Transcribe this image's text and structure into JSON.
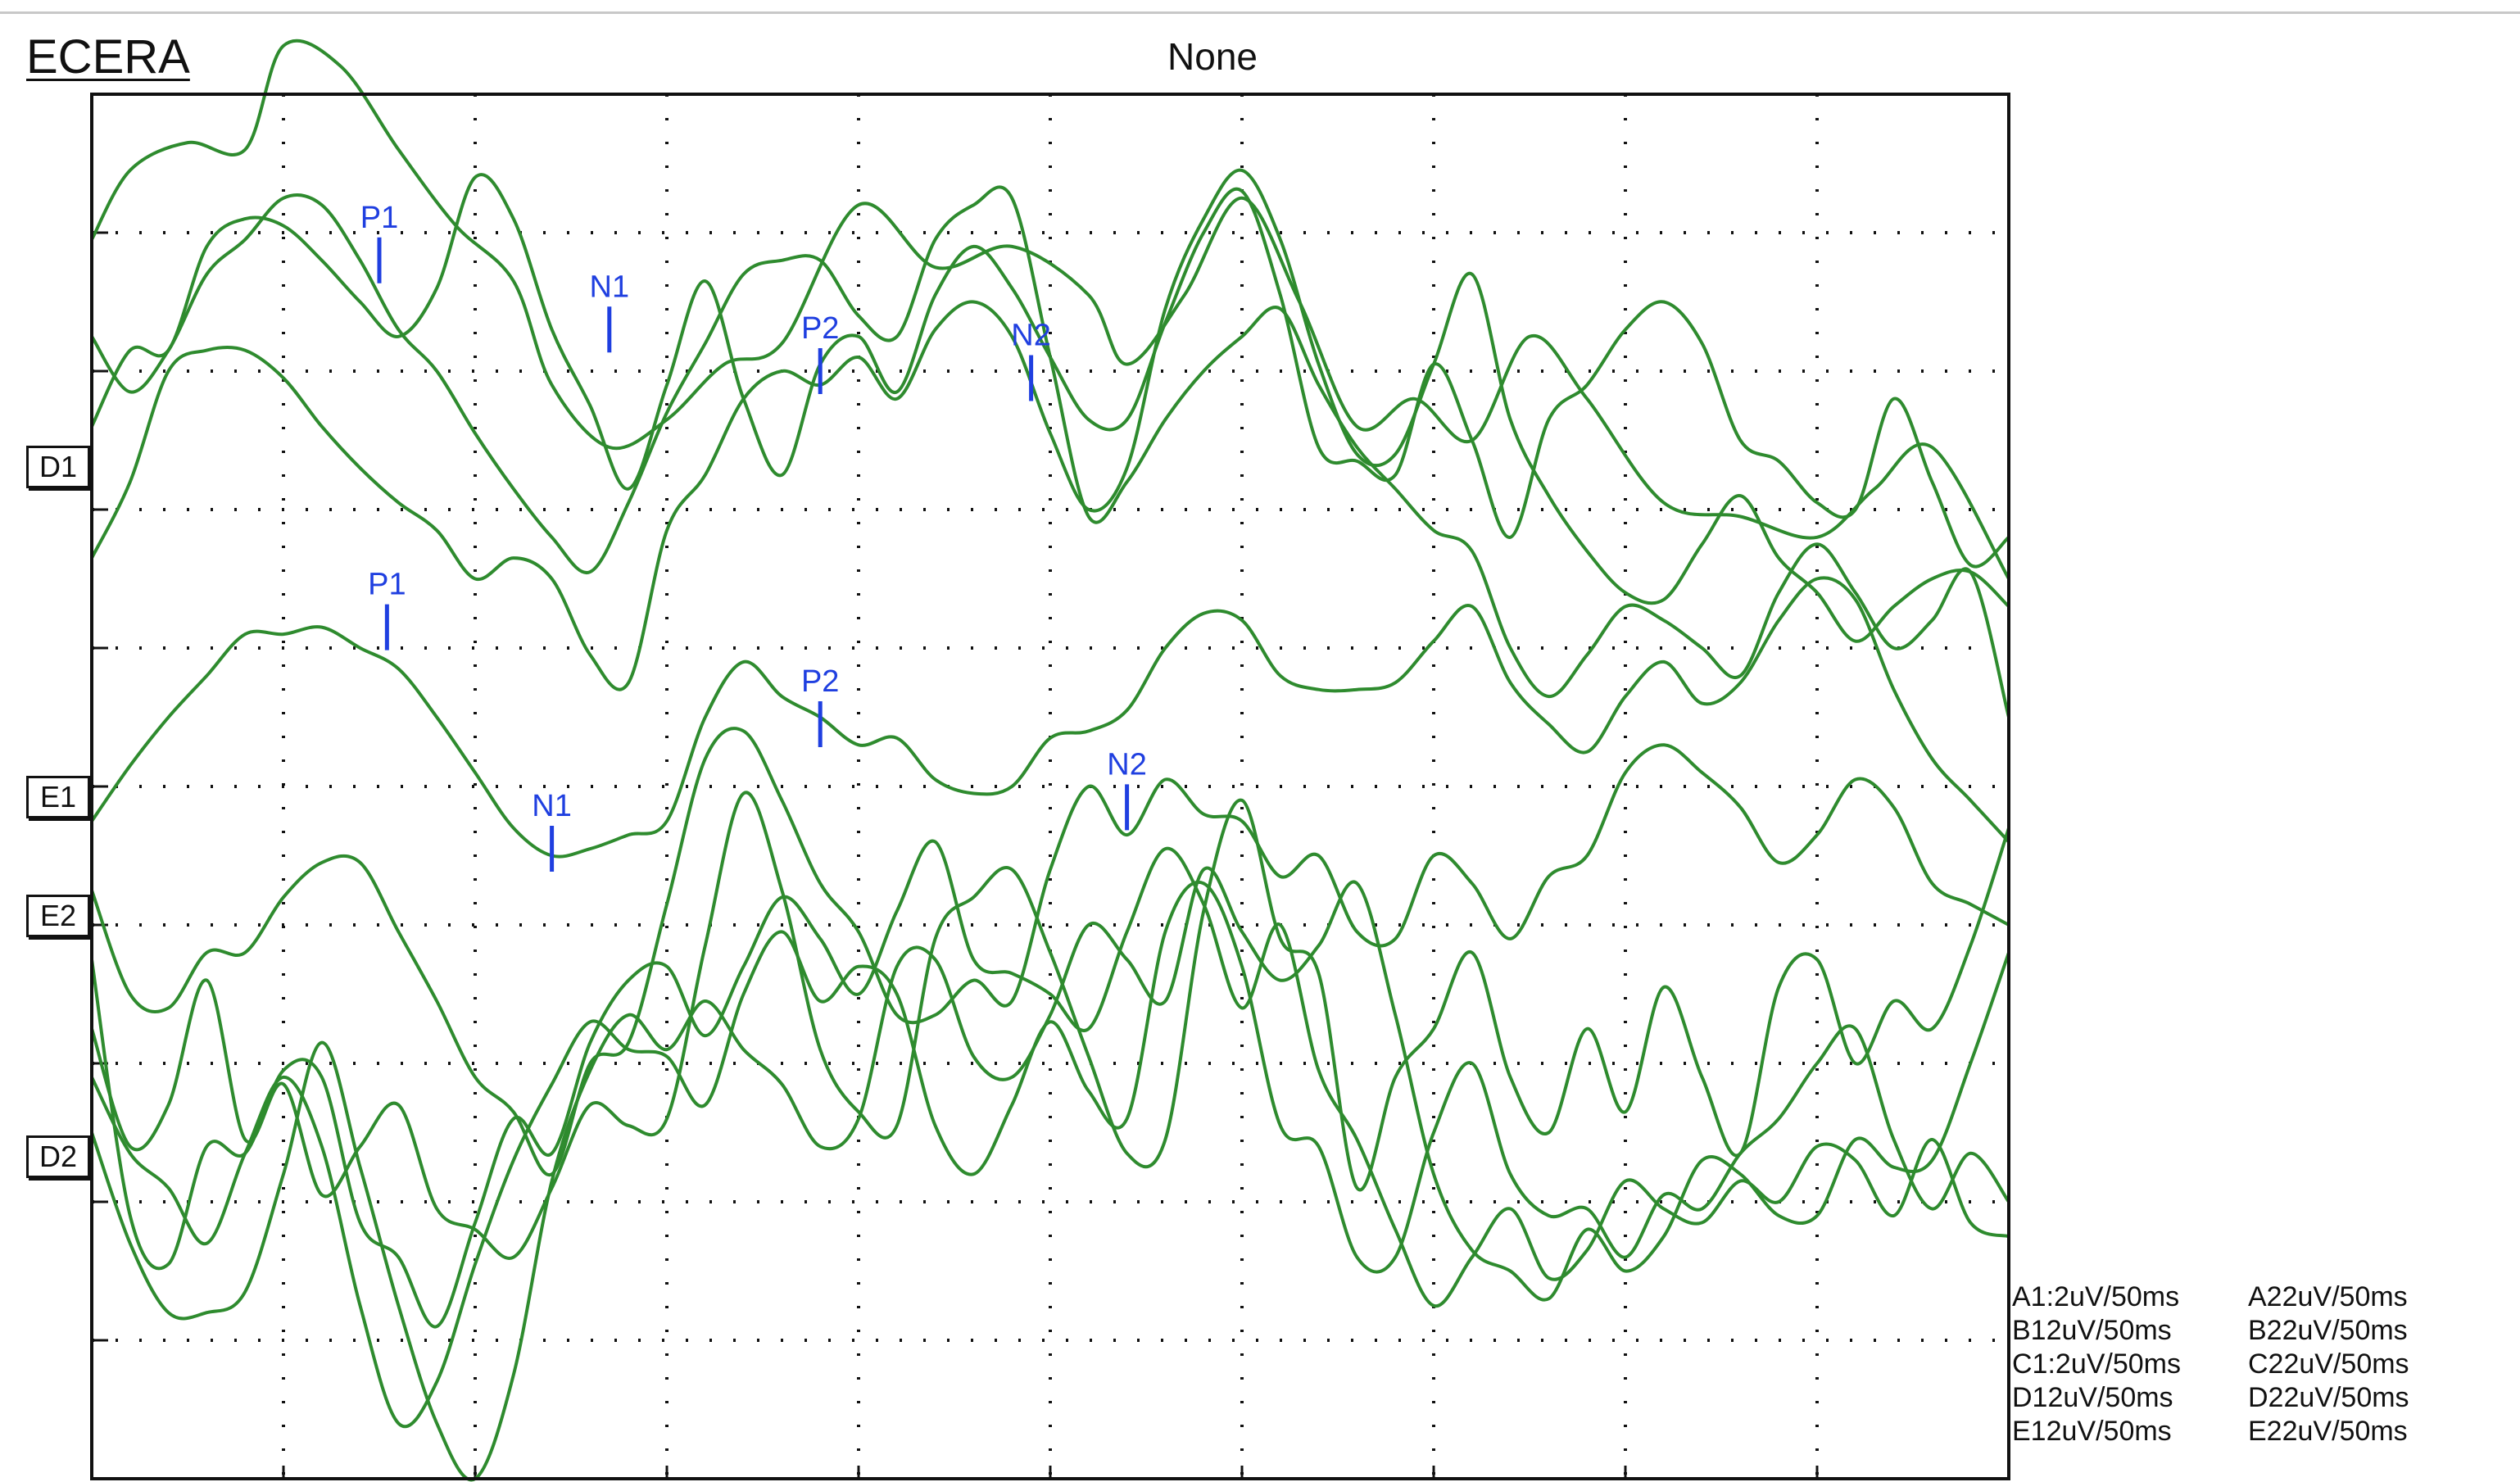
{
  "app": {
    "title": "ECERA"
  },
  "condition": "None",
  "channels": [
    "D1",
    "E1",
    "E2",
    "D2"
  ],
  "scale_settings": [
    [
      "A1:2uV/50ms",
      "A22uV/50ms"
    ],
    [
      "B12uV/50ms",
      "B22uV/50ms"
    ],
    [
      "C1:2uV/50ms",
      "C22uV/50ms"
    ],
    [
      "D12uV/50ms",
      "D22uV/50ms"
    ],
    [
      "E12uV/50ms",
      "E22uV/50ms"
    ]
  ],
  "colors": {
    "trace": "#2e8b2e",
    "marker": "#1f3fe0",
    "grid": "#111111",
    "frame": "#111111"
  },
  "chart_data": {
    "type": "line",
    "title": "None",
    "xlabel": "",
    "ylabel": "",
    "xlim": [
      0,
      500
    ],
    "ylim": [
      -10,
      10
    ],
    "x_unit": "ms",
    "y_unit": "uV",
    "grid": true,
    "x_divisions": 10,
    "y_divisions": 10,
    "series": [
      {
        "x": [
          0,
          10,
          25,
          40,
          50,
          65,
          80,
          95,
          110,
          120,
          135,
          150,
          165,
          180,
          200,
          220,
          240,
          260,
          270,
          285,
          300,
          315,
          330,
          345,
          360,
          375,
          390,
          410,
          430,
          450,
          465,
          480,
          500
        ],
        "y": [
          7.9,
          8.9,
          9.3,
          9.2,
          10.7,
          10.4,
          9.2,
          8.1,
          7.3,
          5.8,
          4.9,
          5.3,
          6.1,
          6.4,
          8.4,
          7.5,
          7.8,
          7.1,
          6.1,
          7.1,
          8.5,
          7.0,
          5.2,
          5.6,
          5.0,
          6.5,
          5.6,
          4.1,
          3.9,
          3.6,
          4.3,
          4.9,
          3.0
        ]
      },
      {
        "x": [
          0,
          10,
          20,
          30,
          40,
          50,
          60,
          70,
          80,
          90,
          100,
          110,
          120,
          130,
          140,
          150,
          160,
          170,
          180,
          190,
          200,
          210,
          220,
          230,
          240,
          250,
          260,
          270,
          280,
          290,
          300,
          310,
          320,
          330,
          340,
          350,
          360,
          370,
          380,
          390,
          400,
          410,
          420,
          430,
          440,
          450,
          460,
          470,
          480,
          490,
          500
        ],
        "y": [
          5.2,
          6.3,
          6.3,
          7.8,
          8.2,
          8.1,
          7.6,
          7.0,
          6.5,
          7.2,
          8.8,
          8.2,
          6.6,
          5.5,
          4.3,
          5.8,
          7.3,
          5.6,
          4.5,
          6.1,
          6.5,
          5.7,
          7.1,
          7.8,
          7.2,
          6.2,
          5.3,
          5.3,
          6.7,
          8.0,
          8.6,
          7.1,
          4.9,
          4.7,
          4.5,
          6.1,
          5.0,
          3.6,
          5.3,
          5.8,
          6.6,
          7.0,
          6.4,
          5.0,
          4.7,
          4.1,
          4.0,
          5.6,
          4.4,
          3.2,
          3.6
        ]
      },
      {
        "x": [
          0,
          10,
          20,
          30,
          40,
          50,
          60,
          70,
          80,
          90,
          100,
          110,
          120,
          130,
          140,
          150,
          160,
          170,
          180,
          190,
          200,
          210,
          220,
          230,
          240,
          250,
          260,
          270,
          280,
          290,
          300,
          310,
          320,
          330,
          340,
          350,
          360,
          370,
          380,
          390,
          400,
          410,
          420,
          430,
          440,
          450,
          460,
          470,
          480,
          490,
          500
        ],
        "y": [
          6.5,
          5.7,
          6.3,
          7.4,
          7.9,
          8.5,
          8.4,
          7.6,
          6.6,
          6.0,
          5.1,
          4.3,
          3.6,
          3.1,
          4.1,
          5.4,
          6.4,
          7.4,
          7.6,
          7.6,
          6.8,
          6.5,
          7.9,
          8.4,
          8.5,
          6.2,
          3.9,
          4.4,
          5.3,
          6.0,
          6.5,
          6.9,
          5.8,
          4.9,
          4.3,
          3.7,
          3.4,
          2.0,
          1.3,
          1.9,
          2.6,
          2.4,
          2.0,
          1.6,
          2.8,
          3.5,
          2.8,
          2.0,
          2.4,
          3.1,
          1.0
        ]
      },
      {
        "x": [
          0,
          10,
          20,
          30,
          40,
          50,
          60,
          70,
          80,
          90,
          100,
          110,
          120,
          130,
          140,
          150,
          160,
          170,
          180,
          190,
          200,
          210,
          220,
          230,
          240,
          250,
          260,
          270,
          280,
          290,
          300,
          310,
          320,
          330,
          340,
          350,
          360,
          370,
          380,
          390,
          400,
          410,
          420,
          430,
          440,
          450,
          460,
          470,
          480,
          490,
          500
        ],
        "y": [
          3.3,
          4.4,
          6.0,
          6.3,
          6.3,
          5.9,
          5.2,
          4.6,
          4.1,
          3.7,
          3.0,
          3.3,
          3.0,
          1.9,
          1.5,
          3.7,
          4.5,
          5.6,
          6.0,
          5.8,
          6.2,
          5.6,
          6.6,
          7.0,
          6.5,
          5.1,
          4.0,
          4.6,
          6.9,
          8.2,
          8.9,
          7.9,
          6.1,
          4.8,
          4.8,
          6.1,
          7.4,
          5.3,
          4.2,
          3.4,
          2.8,
          2.7,
          3.5,
          4.2,
          3.3,
          2.8,
          2.1,
          2.6,
          3.0,
          3.1,
          2.6
        ]
      },
      {
        "x": [
          0,
          10,
          20,
          30,
          40,
          50,
          60,
          70,
          80,
          90,
          100,
          110,
          120,
          130,
          140,
          150,
          160,
          170,
          180,
          190,
          200,
          210,
          220,
          230,
          240,
          250,
          260,
          270,
          280,
          290,
          300,
          310,
          320,
          330,
          340,
          350,
          360,
          370,
          380,
          390,
          400,
          410,
          420,
          430,
          440,
          450,
          460,
          470,
          480,
          490,
          500
        ],
        "y": [
          -0.5,
          0.3,
          1.0,
          1.6,
          2.2,
          2.2,
          2.3,
          2.0,
          1.7,
          1.0,
          0.2,
          -0.6,
          -1.0,
          -0.9,
          -0.7,
          -0.5,
          1.0,
          1.8,
          1.3,
          1.0,
          0.6,
          0.7,
          0.1,
          -0.1,
          0.0,
          0.7,
          0.8,
          1.1,
          2.0,
          2.5,
          2.4,
          1.6,
          1.4,
          1.4,
          1.5,
          2.1,
          2.6,
          1.5,
          0.9,
          0.5,
          1.3,
          1.8,
          1.2,
          1.5,
          2.4,
          3.0,
          2.7,
          1.4,
          0.4,
          -0.2,
          -0.8
        ]
      },
      {
        "x": [
          0,
          10,
          20,
          30,
          40,
          50,
          60,
          70,
          80,
          90,
          100,
          110,
          120,
          130,
          140,
          150,
          160,
          170,
          180,
          190,
          200,
          210,
          220,
          230,
          240,
          250,
          260,
          270,
          280,
          290,
          300,
          310,
          320,
          330,
          340,
          350,
          360,
          370,
          380,
          390,
          400,
          410,
          420,
          430,
          440,
          450,
          460,
          470,
          480,
          490,
          500
        ],
        "y": [
          -1.5,
          -3.0,
          -3.2,
          -2.4,
          -2.4,
          -1.6,
          -1.1,
          -1.1,
          -2.1,
          -3.1,
          -4.2,
          -4.7,
          -5.6,
          -4.0,
          -3.7,
          -1.7,
          0.4,
          0.8,
          -0.2,
          -1.4,
          -2.1,
          -3.3,
          -3.3,
          -2.8,
          -3.1,
          -1.2,
          0.0,
          -0.7,
          0.1,
          -0.4,
          -0.5,
          -1.3,
          -1.0,
          -2.1,
          -2.2,
          -1.0,
          -1.4,
          -2.2,
          -1.3,
          -1.0,
          0.2,
          0.6,
          0.2,
          -0.3,
          -1.1,
          -0.7,
          0.1,
          -0.3,
          -1.4,
          -1.7,
          -2.0
        ]
      },
      {
        "x": [
          0,
          10,
          20,
          30,
          40,
          50,
          60,
          70,
          80,
          90,
          100,
          110,
          120,
          130,
          140,
          150,
          160,
          170,
          180,
          190,
          200,
          210,
          220,
          230,
          240,
          250,
          260,
          270,
          280,
          290,
          300,
          310,
          320,
          330,
          340,
          350,
          360,
          370,
          380,
          390,
          400,
          410,
          420,
          430,
          440,
          450,
          460,
          470,
          480,
          490,
          500
        ],
        "y": [
          -3.5,
          -5.2,
          -4.6,
          -2.8,
          -5.1,
          -4.3,
          -5.9,
          -5.2,
          -4.6,
          -6.1,
          -6.4,
          -6.8,
          -5.8,
          -4.6,
          -4.9,
          -4.8,
          -2.3,
          -0.1,
          -1.5,
          -3.8,
          -4.7,
          -4.9,
          -2.2,
          -1.6,
          -1.2,
          -2.4,
          -3.9,
          -5.3,
          -5.1,
          -1.8,
          -0.2,
          -2.2,
          -2.7,
          -5.8,
          -4.2,
          -3.5,
          -2.4,
          -4.2,
          -5.0,
          -3.5,
          -4.7,
          -2.9,
          -4.2,
          -5.3,
          -2.9,
          -2.5,
          -4.0,
          -3.1,
          -3.5,
          -2.3,
          -0.6
        ]
      },
      {
        "x": [
          0,
          10,
          20,
          30,
          40,
          50,
          60,
          70,
          80,
          90,
          100,
          110,
          120,
          130,
          140,
          150,
          160,
          170,
          180,
          190,
          200,
          210,
          220,
          230,
          240,
          250,
          260,
          270,
          280,
          290,
          300,
          310,
          320,
          330,
          340,
          350,
          360,
          370,
          380,
          390,
          400,
          410,
          420,
          430,
          440,
          450,
          460,
          470,
          480,
          490,
          500
        ],
        "y": [
          -2.5,
          -6.2,
          -6.9,
          -5.2,
          -5.3,
          -4.1,
          -4.2,
          -6.3,
          -6.8,
          -7.8,
          -6.3,
          -4.8,
          -5.3,
          -3.7,
          -2.8,
          -2.6,
          -3.6,
          -2.6,
          -1.6,
          -2.2,
          -3.0,
          -1.8,
          -0.8,
          -2.5,
          -2.7,
          -3.0,
          -3.5,
          -2.1,
          -0.9,
          -1.7,
          -3.2,
          -2.0,
          -4.1,
          -5.1,
          -6.4,
          -7.5,
          -6.8,
          -6.1,
          -7.1,
          -6.7,
          -5.7,
          -6.1,
          -6.3,
          -5.7,
          -6.0,
          -5.2,
          -5.4,
          -6.2,
          -5.1,
          -6.3,
          -6.5
        ]
      },
      {
        "x": [
          0,
          10,
          20,
          30,
          40,
          50,
          60,
          70,
          80,
          90,
          100,
          110,
          120,
          130,
          140,
          150,
          160,
          170,
          180,
          190,
          200,
          210,
          220,
          230,
          240,
          250,
          260,
          270,
          280,
          290,
          300,
          310,
          320,
          330,
          340,
          350,
          360,
          370,
          380,
          390,
          400,
          410,
          420,
          430,
          440,
          450,
          460,
          470,
          480,
          490,
          500
        ],
        "y": [
          -5.0,
          -6.6,
          -7.6,
          -7.6,
          -7.3,
          -5.6,
          -3.7,
          -5.5,
          -7.5,
          -9.2,
          -10.0,
          -8.5,
          -5.7,
          -4.1,
          -3.3,
          -3.8,
          -3.1,
          -3.8,
          -4.3,
          -5.2,
          -4.8,
          -2.6,
          -2.5,
          -3.9,
          -4.2,
          -3.3,
          -2.0,
          -2.5,
          -3.1,
          -1.2,
          -2.1,
          -2.8,
          -2.3,
          -1.4,
          -3.3,
          -5.6,
          -6.7,
          -7.0,
          -7.4,
          -6.4,
          -7.0,
          -6.5,
          -5.4,
          -5.6,
          -6.2,
          -6.2,
          -5.1,
          -5.5,
          -5.4,
          -4.0,
          -2.4
        ]
      },
      {
        "x": [
          0,
          10,
          20,
          30,
          40,
          50,
          60,
          70,
          80,
          90,
          100,
          110,
          120,
          130,
          140,
          150,
          160,
          170,
          180,
          190,
          200,
          210,
          220,
          230,
          240,
          250,
          260,
          270,
          280,
          290,
          300,
          310,
          320,
          330,
          340,
          350,
          360,
          370,
          380,
          390,
          400,
          410,
          420,
          430,
          440,
          450,
          460,
          470,
          480,
          490,
          500
        ],
        "y": [
          -4.2,
          -5.3,
          -5.8,
          -6.6,
          -5.3,
          -4.2,
          -5.2,
          -7.5,
          -9.2,
          -8.6,
          -6.9,
          -5.4,
          -4.3,
          -3.4,
          -3.8,
          -3.9,
          -4.6,
          -3.0,
          -2.1,
          -3.1,
          -2.6,
          -3.0,
          -4.9,
          -5.6,
          -4.6,
          -3.4,
          -4.4,
          -4.8,
          -2.1,
          -1.4,
          -2.6,
          -4.9,
          -5.2,
          -6.8,
          -6.8,
          -5.0,
          -4.0,
          -5.6,
          -6.2,
          -6.1,
          -6.8,
          -5.9,
          -6.1,
          -5.3,
          -4.8,
          -4.0,
          -3.5,
          -5.1,
          -6.1,
          -5.3,
          -6.0
        ]
      }
    ],
    "markers": [
      {
        "label": "P1",
        "x": 75,
        "y": 7.6
      },
      {
        "label": "N1",
        "x": 135,
        "y": 6.6
      },
      {
        "label": "P2",
        "x": 190,
        "y": 6.0
      },
      {
        "label": "N2",
        "x": 245,
        "y": 5.9
      },
      {
        "label": "P1",
        "x": 77,
        "y": 2.3
      },
      {
        "label": "N1",
        "x": 120,
        "y": -0.9
      },
      {
        "label": "P2",
        "x": 190,
        "y": 0.9
      },
      {
        "label": "N2",
        "x": 270,
        "y": -0.3
      }
    ]
  }
}
